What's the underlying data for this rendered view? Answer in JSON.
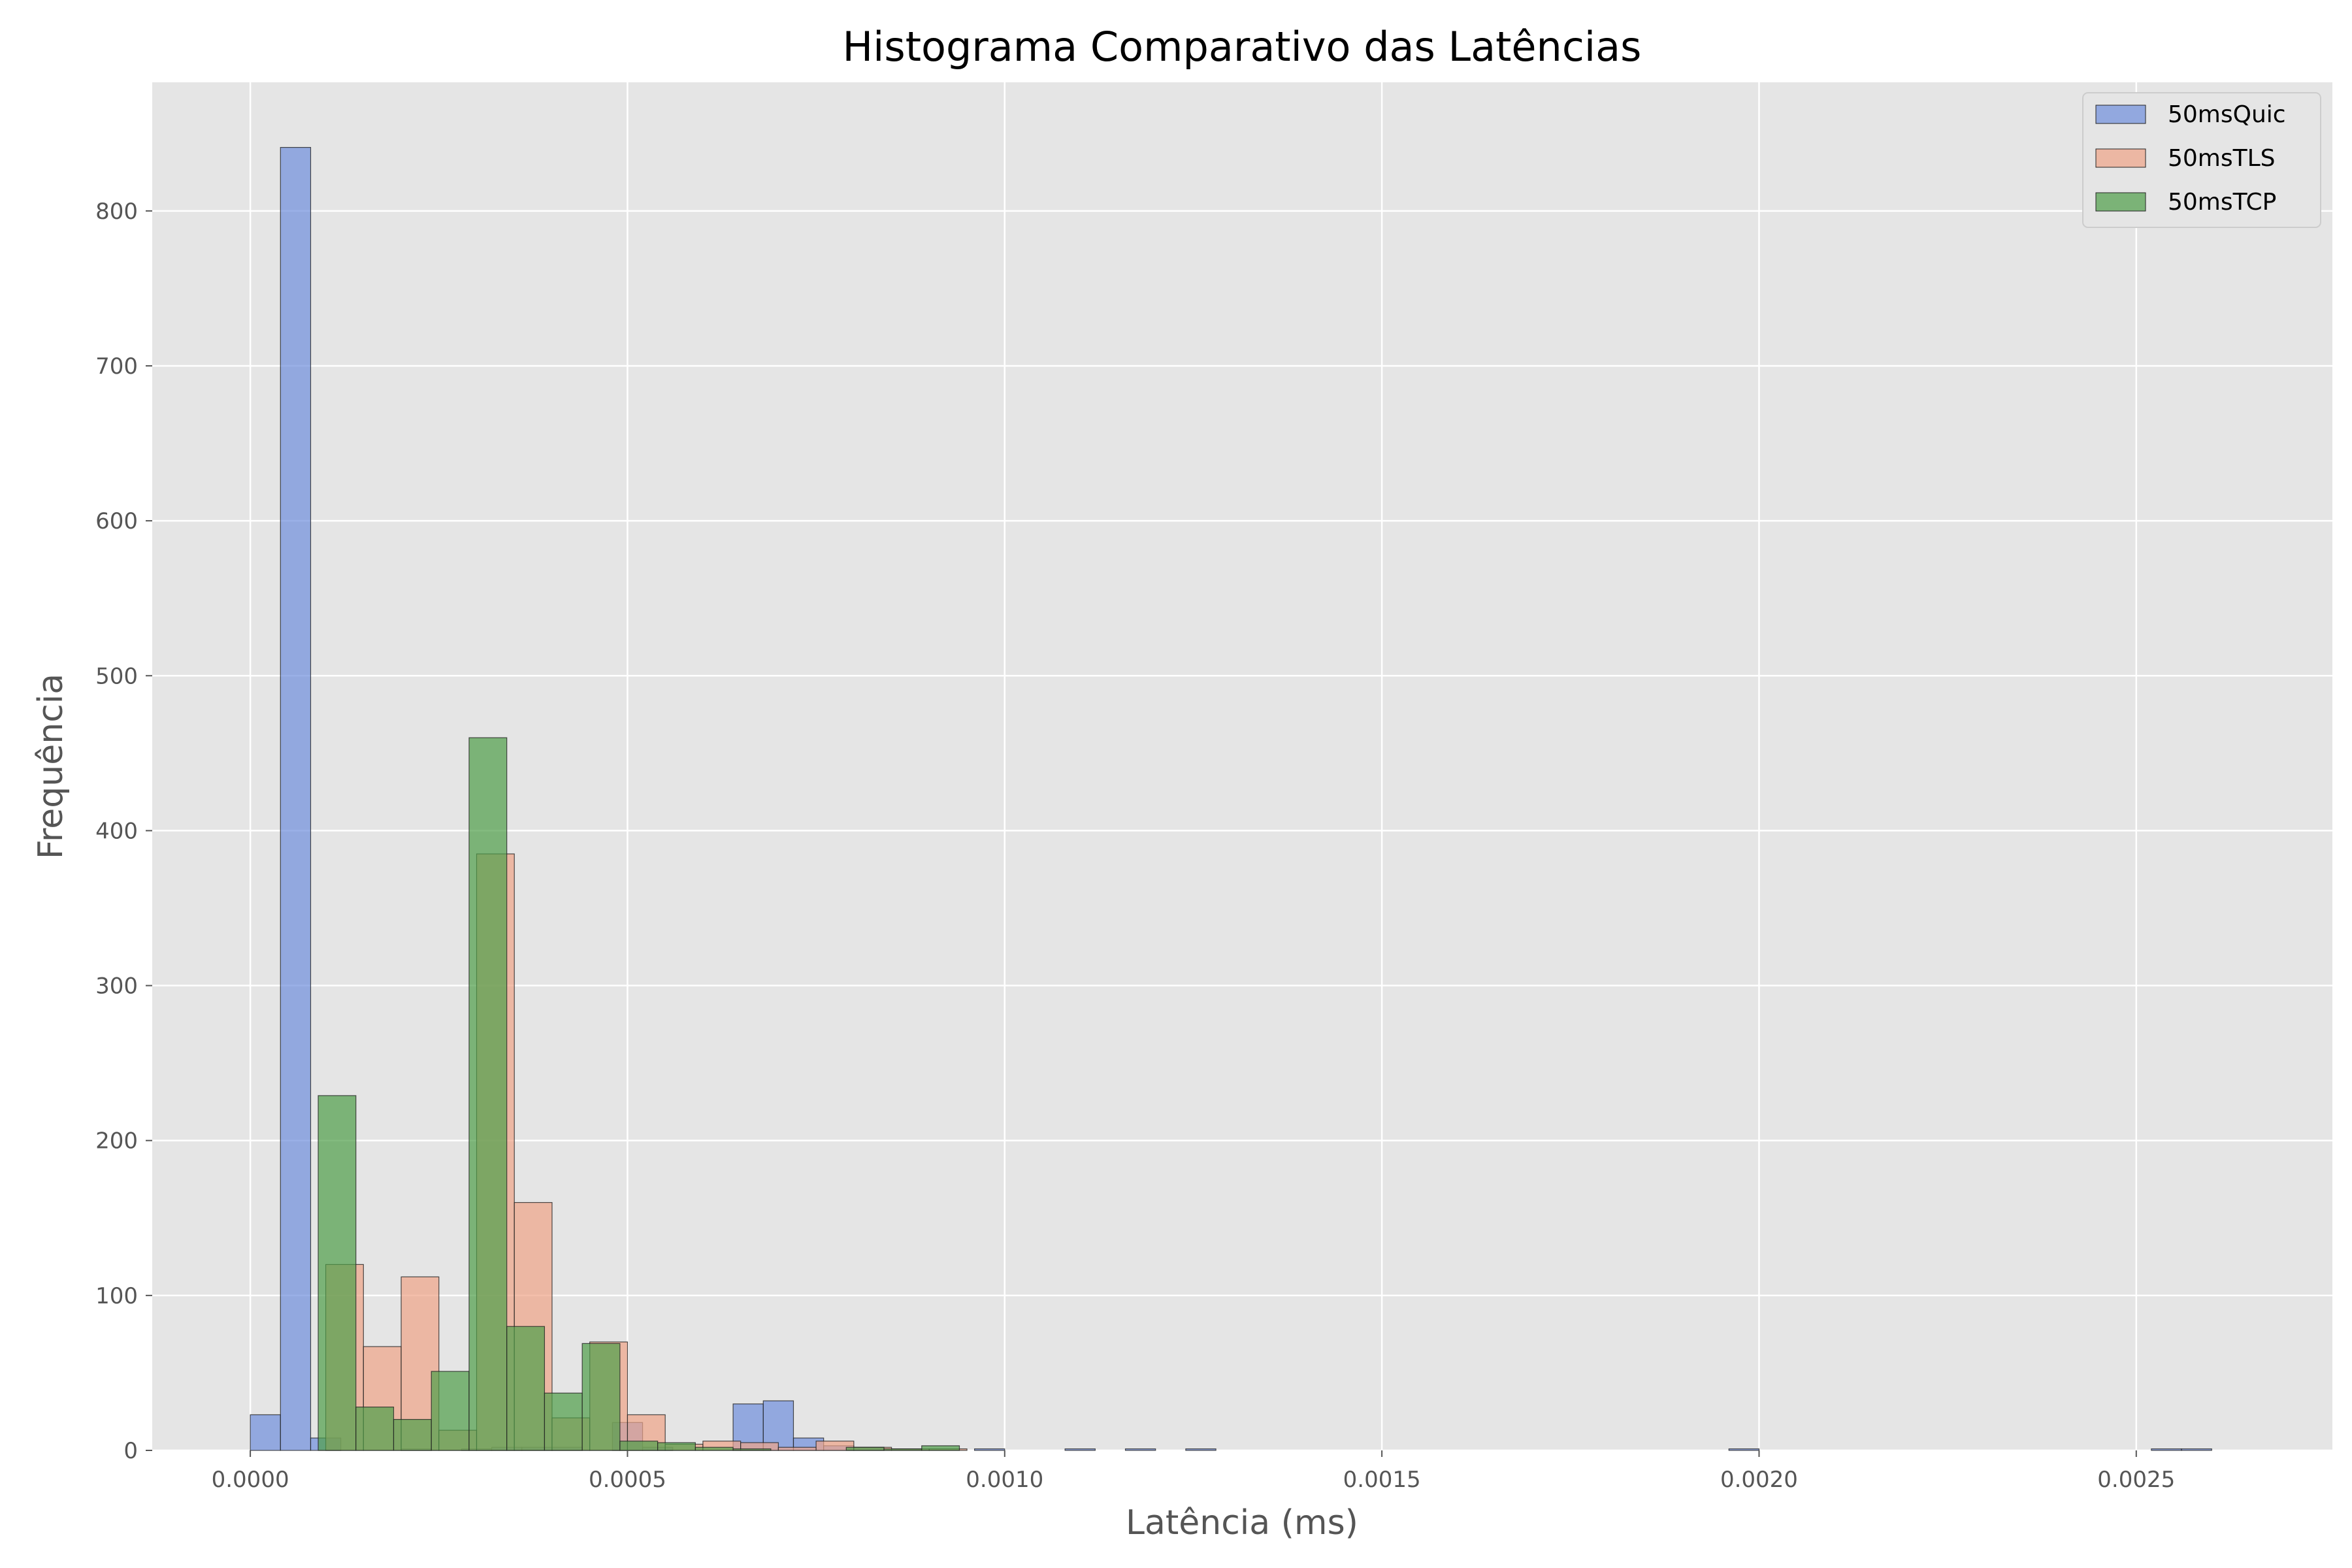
{
  "chart_data": {
    "type": "bar",
    "title": "Histograma Comparativo das Latências",
    "xlabel": "Latência (ms)",
    "ylabel": "Frequência",
    "xlim": [
      -0.00013,
      0.00276
    ],
    "ylim": [
      0,
      883
    ],
    "xticks": [
      0.0,
      0.0005,
      0.001,
      0.0015,
      0.002,
      0.0025
    ],
    "xtick_labels": [
      "0.0000",
      "0.0005",
      "0.0010",
      "0.0015",
      "0.0020",
      "0.0025"
    ],
    "yticks": [
      0,
      100,
      200,
      300,
      400,
      500,
      600,
      700,
      800
    ],
    "ytick_labels": [
      "0",
      "100",
      "200",
      "300",
      "400",
      "500",
      "600",
      "700",
      "800"
    ],
    "grid": true,
    "legend_position": "top-right",
    "series": [
      {
        "name": "50msQuic",
        "color": "#6f8fdd",
        "bin_width": 4e-05,
        "bins": [
          {
            "x0": 0.0,
            "count": 23
          },
          {
            "x0": 4e-05,
            "count": 841
          },
          {
            "x0": 8e-05,
            "count": 8
          },
          {
            "x0": 0.0002,
            "count": 1
          },
          {
            "x0": 0.00028,
            "count": 1
          },
          {
            "x0": 0.00032,
            "count": 2
          },
          {
            "x0": 0.00036,
            "count": 2
          },
          {
            "x0": 0.0004,
            "count": 2
          },
          {
            "x0": 0.00048,
            "count": 18
          },
          {
            "x0": 0.00052,
            "count": 2
          },
          {
            "x0": 0.00064,
            "count": 30
          },
          {
            "x0": 0.00068,
            "count": 32
          },
          {
            "x0": 0.00072,
            "count": 8
          },
          {
            "x0": 0.00076,
            "count": 3
          },
          {
            "x0": 0.0008,
            "count": 2
          },
          {
            "x0": 0.00096,
            "count": 1
          },
          {
            "x0": 0.00108,
            "count": 1
          },
          {
            "x0": 0.00116,
            "count": 1
          },
          {
            "x0": 0.00124,
            "count": 1
          },
          {
            "x0": 0.00196,
            "count": 1
          },
          {
            "x0": 0.00252,
            "count": 1
          },
          {
            "x0": 0.00256,
            "count": 1
          }
        ]
      },
      {
        "name": "50msTLS",
        "color": "#f0a487",
        "bin_width": 5e-05,
        "bins": [
          {
            "x0": 0.0001,
            "count": 120
          },
          {
            "x0": 0.00015,
            "count": 67
          },
          {
            "x0": 0.0002,
            "count": 112
          },
          {
            "x0": 0.00025,
            "count": 13
          },
          {
            "x0": 0.0003,
            "count": 385
          },
          {
            "x0": 0.00035,
            "count": 160
          },
          {
            "x0": 0.0004,
            "count": 21
          },
          {
            "x0": 0.00045,
            "count": 70
          },
          {
            "x0": 0.0005,
            "count": 23
          },
          {
            "x0": 0.00055,
            "count": 4
          },
          {
            "x0": 0.0006,
            "count": 6
          },
          {
            "x0": 0.00065,
            "count": 5
          },
          {
            "x0": 0.0007,
            "count": 2
          },
          {
            "x0": 0.00075,
            "count": 6
          },
          {
            "x0": 0.0008,
            "count": 2
          },
          {
            "x0": 0.00085,
            "count": 1
          },
          {
            "x0": 0.0009,
            "count": 1
          }
        ]
      },
      {
        "name": "50msTCP",
        "color": "#4e9e48",
        "bin_width": 5e-05,
        "bins": [
          {
            "x0": 9e-05,
            "count": 229
          },
          {
            "x0": 0.00014,
            "count": 28
          },
          {
            "x0": 0.00019,
            "count": 20
          },
          {
            "x0": 0.00024,
            "count": 51
          },
          {
            "x0": 0.00029,
            "count": 460
          },
          {
            "x0": 0.00034,
            "count": 80
          },
          {
            "x0": 0.00039,
            "count": 37
          },
          {
            "x0": 0.00044,
            "count": 69
          },
          {
            "x0": 0.00049,
            "count": 6
          },
          {
            "x0": 0.00054,
            "count": 5
          },
          {
            "x0": 0.00059,
            "count": 2
          },
          {
            "x0": 0.00064,
            "count": 1
          },
          {
            "x0": 0.00079,
            "count": 2
          },
          {
            "x0": 0.00084,
            "count": 1
          },
          {
            "x0": 0.00089,
            "count": 3
          }
        ]
      }
    ]
  }
}
